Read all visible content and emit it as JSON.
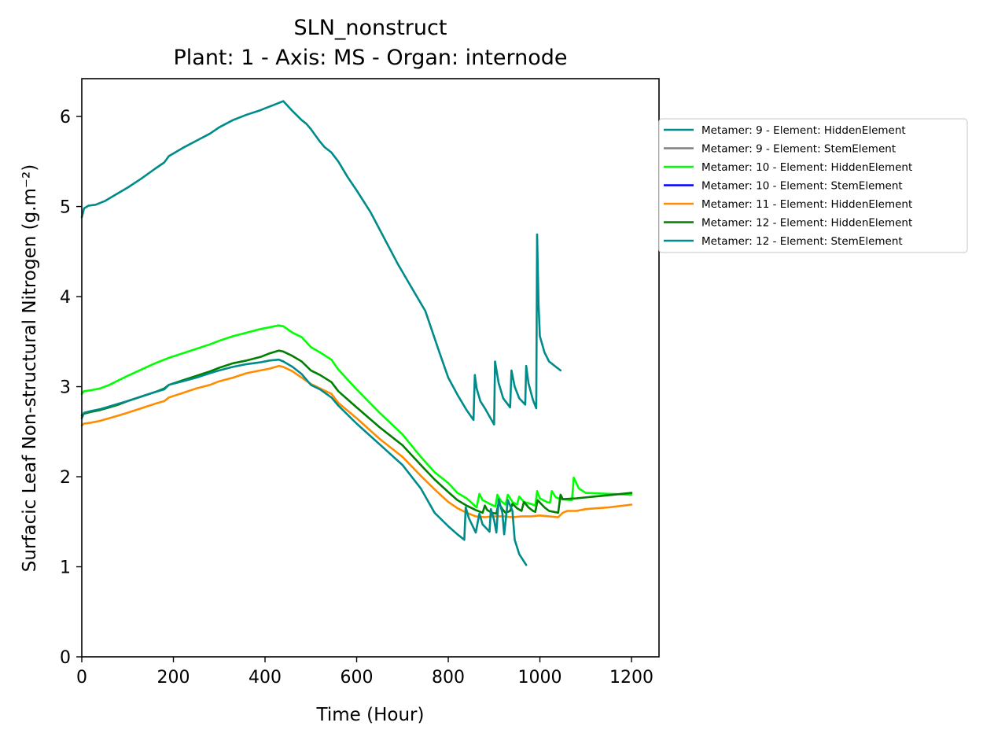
{
  "chart_data": {
    "type": "line",
    "title": "SLN_nonstruct",
    "subtitle": "Plant: 1 - Axis: MS - Organ: internode",
    "xlabel": "Time (Hour)",
    "ylabel": "Surfacic Leaf Non-structural Nitrogen (g.m⁻²)",
    "xlim": [
      0,
      1260
    ],
    "ylim": [
      0,
      6.42
    ],
    "xticks": [
      0,
      200,
      400,
      600,
      800,
      1000,
      1200
    ],
    "yticks": [
      0,
      1,
      2,
      3,
      4,
      5,
      6
    ],
    "grid": false,
    "legend_position": "right, outside plot",
    "series": [
      {
        "name": "Metamer: 9 - Element: HiddenElement",
        "color": "#008b8b",
        "x": [
          0,
          5,
          15,
          30,
          50,
          70,
          100,
          130,
          160,
          180,
          190,
          220,
          250,
          280,
          300,
          330,
          360,
          390,
          405,
          420,
          440,
          460,
          480,
          490,
          500,
          520,
          530,
          545,
          560,
          580,
          600,
          630,
          660,
          690,
          720,
          750,
          780,
          800,
          820,
          840,
          855,
          858,
          862,
          870,
          880,
          900,
          902,
          910,
          920,
          935,
          938,
          945,
          955,
          968,
          970,
          975,
          985,
          992,
          994,
          997,
          1000,
          1010,
          1020,
          1035,
          1045
        ],
        "y": [
          4.88,
          4.98,
          5.01,
          5.02,
          5.06,
          5.12,
          5.21,
          5.31,
          5.42,
          5.49,
          5.56,
          5.65,
          5.73,
          5.81,
          5.88,
          5.96,
          6.02,
          6.07,
          6.1,
          6.13,
          6.17,
          6.06,
          5.96,
          5.92,
          5.86,
          5.72,
          5.66,
          5.6,
          5.5,
          5.33,
          5.18,
          4.94,
          4.65,
          4.36,
          4.1,
          3.84,
          3.39,
          3.1,
          2.91,
          2.74,
          2.63,
          3.13,
          2.98,
          2.84,
          2.76,
          2.58,
          3.28,
          3.04,
          2.87,
          2.77,
          3.18,
          3.0,
          2.87,
          2.8,
          3.23,
          3.04,
          2.85,
          2.76,
          4.69,
          3.92,
          3.56,
          3.38,
          3.28,
          3.22,
          3.18
        ]
      },
      {
        "name": "Metamer: 9 - Element: StemElement",
        "color": "#808080",
        "x": [],
        "y": []
      },
      {
        "name": "Metamer: 10 - Element: HiddenElement",
        "color": "#00ff00",
        "x": [
          0,
          5,
          20,
          40,
          60,
          80,
          100,
          130,
          160,
          180,
          190,
          220,
          250,
          280,
          300,
          330,
          360,
          390,
          410,
          430,
          440,
          460,
          480,
          500,
          520,
          545,
          560,
          600,
          650,
          700,
          740,
          770,
          800,
          820,
          840,
          862,
          868,
          875,
          890,
          903,
          907,
          915,
          925,
          930,
          940,
          950,
          955,
          965,
          980,
          990,
          994,
          1000,
          1015,
          1022,
          1026,
          1035,
          1045,
          1070,
          1074,
          1085,
          1100,
          1150,
          1200
        ],
        "y": [
          2.92,
          2.95,
          2.96,
          2.98,
          3.02,
          3.07,
          3.12,
          3.19,
          3.26,
          3.3,
          3.32,
          3.37,
          3.42,
          3.47,
          3.51,
          3.56,
          3.6,
          3.64,
          3.66,
          3.68,
          3.67,
          3.6,
          3.55,
          3.44,
          3.38,
          3.3,
          3.19,
          2.97,
          2.71,
          2.47,
          2.22,
          2.05,
          1.93,
          1.82,
          1.76,
          1.66,
          1.81,
          1.74,
          1.7,
          1.67,
          1.8,
          1.73,
          1.69,
          1.8,
          1.72,
          1.69,
          1.78,
          1.72,
          1.7,
          1.68,
          1.84,
          1.76,
          1.72,
          1.71,
          1.84,
          1.77,
          1.75,
          1.74,
          1.99,
          1.87,
          1.82,
          1.81,
          1.8
        ]
      },
      {
        "name": "Metamer: 10 - Element: StemElement",
        "color": "#0000ff",
        "x": [],
        "y": []
      },
      {
        "name": "Metamer: 11 - Element: HiddenElement",
        "color": "#ff8c00",
        "x": [
          0,
          5,
          20,
          40,
          60,
          80,
          100,
          130,
          160,
          180,
          190,
          220,
          250,
          280,
          300,
          330,
          360,
          390,
          410,
          430,
          440,
          460,
          480,
          500,
          520,
          545,
          560,
          600,
          650,
          700,
          740,
          770,
          800,
          820,
          840,
          860,
          880,
          900,
          920,
          940,
          960,
          980,
          1000,
          1020,
          1040,
          1050,
          1060,
          1080,
          1100,
          1150,
          1200
        ],
        "y": [
          2.57,
          2.59,
          2.6,
          2.62,
          2.65,
          2.68,
          2.71,
          2.76,
          2.81,
          2.84,
          2.88,
          2.93,
          2.98,
          3.02,
          3.06,
          3.1,
          3.15,
          3.18,
          3.2,
          3.23,
          3.22,
          3.17,
          3.1,
          3.03,
          2.98,
          2.92,
          2.82,
          2.65,
          2.42,
          2.22,
          2.01,
          1.86,
          1.72,
          1.65,
          1.6,
          1.56,
          1.55,
          1.56,
          1.56,
          1.55,
          1.56,
          1.56,
          1.57,
          1.56,
          1.55,
          1.6,
          1.62,
          1.62,
          1.64,
          1.66,
          1.69
        ]
      },
      {
        "name": "Metamer: 12 - Element: HiddenElement",
        "color": "#008000",
        "x": [
          0,
          5,
          20,
          40,
          60,
          80,
          100,
          130,
          160,
          180,
          190,
          220,
          250,
          280,
          300,
          330,
          360,
          390,
          410,
          430,
          440,
          460,
          480,
          500,
          520,
          545,
          560,
          600,
          650,
          700,
          740,
          770,
          800,
          820,
          840,
          860,
          875,
          880,
          885,
          895,
          905,
          910,
          918,
          925,
          935,
          940,
          950,
          960,
          965,
          975,
          985,
          990,
          995,
          1010,
          1020,
          1030,
          1040,
          1045,
          1050,
          1080,
          1120,
          1160,
          1200
        ],
        "y": [
          2.68,
          2.7,
          2.72,
          2.74,
          2.77,
          2.8,
          2.84,
          2.89,
          2.94,
          2.98,
          3.02,
          3.07,
          3.12,
          3.17,
          3.21,
          3.26,
          3.29,
          3.33,
          3.37,
          3.4,
          3.39,
          3.34,
          3.28,
          3.18,
          3.13,
          3.05,
          2.95,
          2.77,
          2.55,
          2.35,
          2.13,
          1.97,
          1.83,
          1.74,
          1.68,
          1.63,
          1.6,
          1.68,
          1.63,
          1.6,
          1.59,
          1.71,
          1.64,
          1.6,
          1.62,
          1.7,
          1.65,
          1.62,
          1.72,
          1.66,
          1.62,
          1.61,
          1.74,
          1.66,
          1.62,
          1.61,
          1.6,
          1.8,
          1.75,
          1.76,
          1.78,
          1.8,
          1.82
        ]
      },
      {
        "name": "Metamer: 12 - Element: StemElement",
        "color": "#008b8b",
        "x": [
          0,
          5,
          20,
          40,
          60,
          80,
          100,
          130,
          160,
          180,
          190,
          220,
          250,
          280,
          300,
          330,
          360,
          390,
          410,
          430,
          440,
          460,
          480,
          500,
          520,
          545,
          560,
          600,
          650,
          700,
          740,
          770,
          800,
          820,
          835,
          838,
          845,
          860,
          868,
          875,
          890,
          893,
          900,
          905,
          910,
          918,
          922,
          930,
          940,
          945,
          955,
          970
        ],
        "y": [
          2.65,
          2.71,
          2.73,
          2.75,
          2.78,
          2.81,
          2.84,
          2.89,
          2.94,
          2.97,
          3.02,
          3.06,
          3.1,
          3.15,
          3.18,
          3.22,
          3.25,
          3.27,
          3.29,
          3.3,
          3.28,
          3.22,
          3.14,
          3.02,
          2.97,
          2.88,
          2.79,
          2.59,
          2.36,
          2.13,
          1.87,
          1.6,
          1.45,
          1.36,
          1.3,
          1.66,
          1.54,
          1.38,
          1.59,
          1.47,
          1.39,
          1.64,
          1.52,
          1.38,
          1.75,
          1.6,
          1.36,
          1.74,
          1.62,
          1.3,
          1.14,
          1.02
        ]
      }
    ]
  }
}
